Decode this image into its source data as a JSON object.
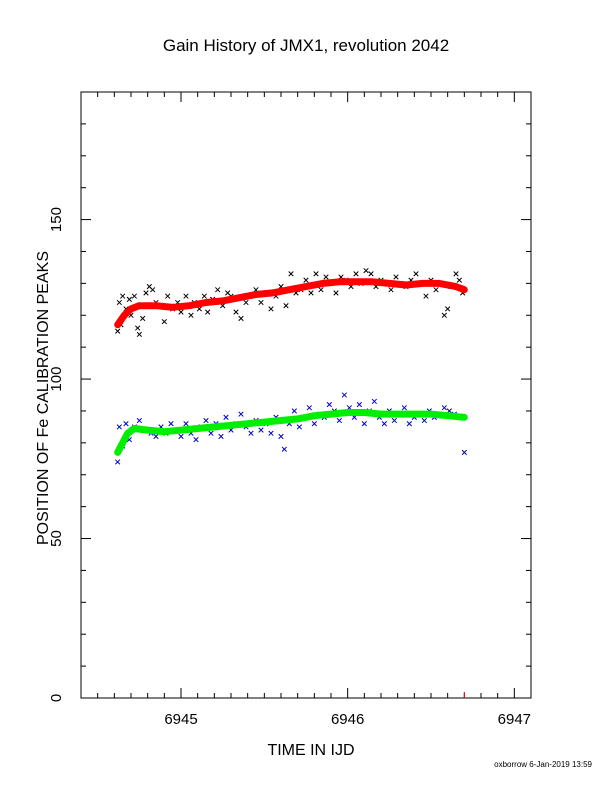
{
  "chart_data": {
    "type": "scatter",
    "title": "Gain History of JMX1, revolution 2042",
    "xlabel": "TIME IN IJD",
    "ylabel": "POSITION OF Fe CALIBRATION PEAKS",
    "xlim": [
      6944.4,
      6947.1
    ],
    "ylim": [
      0,
      190
    ],
    "x_ticks": [
      "6945",
      "6946",
      "6947"
    ],
    "y_ticks": [
      "0",
      "50",
      "100",
      "150"
    ],
    "grid": false,
    "series": [
      {
        "marker": "x",
        "color": "#000000",
        "points": [
          [
            6944.62,
            115
          ],
          [
            6944.63,
            124
          ],
          [
            6944.64,
            117
          ],
          [
            6944.65,
            126
          ],
          [
            6944.67,
            122
          ],
          [
            6944.69,
            125
          ],
          [
            6944.7,
            120
          ],
          [
            6944.72,
            126
          ],
          [
            6944.74,
            116
          ],
          [
            6944.75,
            114
          ],
          [
            6944.77,
            119
          ],
          [
            6944.79,
            127
          ],
          [
            6944.81,
            129
          ],
          [
            6944.83,
            128
          ],
          [
            6944.85,
            124
          ],
          [
            6944.88,
            123
          ],
          [
            6944.9,
            118
          ],
          [
            6944.92,
            126
          ],
          [
            6944.95,
            122
          ],
          [
            6944.98,
            124
          ],
          [
            6945.0,
            121
          ],
          [
            6945.03,
            126
          ],
          [
            6945.06,
            120
          ],
          [
            6945.08,
            124
          ],
          [
            6945.11,
            122
          ],
          [
            6945.14,
            126
          ],
          [
            6945.16,
            121
          ],
          [
            6945.19,
            125
          ],
          [
            6945.22,
            128
          ],
          [
            6945.25,
            123
          ],
          [
            6945.28,
            127
          ],
          [
            6945.3,
            126
          ],
          [
            6945.33,
            121
          ],
          [
            6945.36,
            119
          ],
          [
            6945.39,
            124
          ],
          [
            6945.42,
            126
          ],
          [
            6945.45,
            128
          ],
          [
            6945.48,
            124
          ],
          [
            6945.51,
            127
          ],
          [
            6945.54,
            122
          ],
          [
            6945.57,
            126
          ],
          [
            6945.6,
            129
          ],
          [
            6945.63,
            123
          ],
          [
            6945.66,
            133
          ],
          [
            6945.69,
            127
          ],
          [
            6945.72,
            128
          ],
          [
            6945.75,
            131
          ],
          [
            6945.78,
            127
          ],
          [
            6945.81,
            133
          ],
          [
            6945.84,
            128
          ],
          [
            6945.87,
            132
          ],
          [
            6945.9,
            130
          ],
          [
            6945.93,
            127
          ],
          [
            6945.96,
            132
          ],
          [
            6945.99,
            131
          ],
          [
            6946.02,
            129
          ],
          [
            6946.05,
            133
          ],
          [
            6946.08,
            130
          ],
          [
            6946.11,
            134
          ],
          [
            6946.14,
            133
          ],
          [
            6946.17,
            129
          ],
          [
            6946.2,
            131
          ],
          [
            6946.23,
            130
          ],
          [
            6946.26,
            128
          ],
          [
            6946.29,
            132
          ],
          [
            6946.32,
            130
          ],
          [
            6946.35,
            129
          ],
          [
            6946.38,
            131
          ],
          [
            6946.41,
            133
          ],
          [
            6946.44,
            130
          ],
          [
            6946.47,
            126
          ],
          [
            6946.5,
            131
          ],
          [
            6946.53,
            128
          ],
          [
            6946.56,
            130
          ],
          [
            6946.58,
            120
          ],
          [
            6946.6,
            122
          ],
          [
            6946.62,
            129
          ],
          [
            6946.65,
            133
          ],
          [
            6946.67,
            131
          ],
          [
            6946.69,
            127
          ]
        ]
      },
      {
        "marker": "x",
        "color": "#0000cc",
        "points": [
          [
            6944.62,
            74
          ],
          [
            6944.63,
            85
          ],
          [
            6944.65,
            79
          ],
          [
            6944.67,
            86
          ],
          [
            6944.69,
            81
          ],
          [
            6944.72,
            85
          ],
          [
            6944.75,
            87
          ],
          [
            6944.78,
            84
          ],
          [
            6944.82,
            83
          ],
          [
            6944.85,
            82
          ],
          [
            6944.88,
            85
          ],
          [
            6944.91,
            83
          ],
          [
            6944.94,
            86
          ],
          [
            6944.97,
            84
          ],
          [
            6945.0,
            82
          ],
          [
            6945.03,
            86
          ],
          [
            6945.06,
            83
          ],
          [
            6945.09,
            81
          ],
          [
            6945.12,
            85
          ],
          [
            6945.15,
            87
          ],
          [
            6945.18,
            83
          ],
          [
            6945.21,
            86
          ],
          [
            6945.24,
            82
          ],
          [
            6945.27,
            88
          ],
          [
            6945.3,
            84
          ],
          [
            6945.33,
            86
          ],
          [
            6945.36,
            89
          ],
          [
            6945.39,
            85
          ],
          [
            6945.42,
            83
          ],
          [
            6945.45,
            87
          ],
          [
            6945.48,
            84
          ],
          [
            6945.51,
            86
          ],
          [
            6945.54,
            83
          ],
          [
            6945.57,
            88
          ],
          [
            6945.6,
            82
          ],
          [
            6945.62,
            78
          ],
          [
            6945.65,
            86
          ],
          [
            6945.68,
            90
          ],
          [
            6945.71,
            85
          ],
          [
            6945.74,
            88
          ],
          [
            6945.77,
            91
          ],
          [
            6945.8,
            86
          ],
          [
            6945.83,
            89
          ],
          [
            6945.86,
            88
          ],
          [
            6945.89,
            92
          ],
          [
            6945.92,
            90
          ],
          [
            6945.95,
            87
          ],
          [
            6945.98,
            95
          ],
          [
            6946.01,
            91
          ],
          [
            6946.04,
            88
          ],
          [
            6946.07,
            92
          ],
          [
            6946.1,
            86
          ],
          [
            6946.13,
            90
          ],
          [
            6946.16,
            93
          ],
          [
            6946.19,
            88
          ],
          [
            6946.22,
            86
          ],
          [
            6946.25,
            90
          ],
          [
            6946.28,
            87
          ],
          [
            6946.31,
            89
          ],
          [
            6946.34,
            91
          ],
          [
            6946.37,
            86
          ],
          [
            6946.4,
            88
          ],
          [
            6946.43,
            89
          ],
          [
            6946.46,
            87
          ],
          [
            6946.49,
            90
          ],
          [
            6946.52,
            88
          ],
          [
            6946.55,
            89
          ],
          [
            6946.58,
            91
          ],
          [
            6946.61,
            90
          ],
          [
            6946.64,
            89
          ],
          [
            6946.67,
            88
          ],
          [
            6946.7,
            77
          ]
        ]
      },
      {
        "color": "#ff0000",
        "points": [
          [
            6944.62,
            117
          ],
          [
            6944.66,
            120
          ],
          [
            6944.7,
            122
          ],
          [
            6944.75,
            123
          ],
          [
            6944.85,
            123
          ],
          [
            6944.95,
            122.5
          ],
          [
            6945.05,
            123
          ],
          [
            6945.15,
            124
          ],
          [
            6945.25,
            124.5
          ],
          [
            6945.35,
            125.5
          ],
          [
            6945.45,
            126.5
          ],
          [
            6945.55,
            127
          ],
          [
            6945.65,
            128
          ],
          [
            6945.75,
            129
          ],
          [
            6945.85,
            130
          ],
          [
            6945.95,
            130.5
          ],
          [
            6946.05,
            130.5
          ],
          [
            6946.15,
            130.5
          ],
          [
            6946.25,
            130
          ],
          [
            6946.35,
            129.5
          ],
          [
            6946.45,
            130
          ],
          [
            6946.55,
            130
          ],
          [
            6946.65,
            129
          ],
          [
            6946.7,
            128
          ]
        ]
      },
      {
        "color": "#00ee00",
        "points": [
          [
            6944.62,
            77
          ],
          [
            6944.65,
            80
          ],
          [
            6944.68,
            83
          ],
          [
            6944.72,
            84.5
          ],
          [
            6944.8,
            84
          ],
          [
            6944.9,
            83.5
          ],
          [
            6945.0,
            84
          ],
          [
            6945.1,
            84.5
          ],
          [
            6945.2,
            85
          ],
          [
            6945.3,
            85.5
          ],
          [
            6945.4,
            86
          ],
          [
            6945.5,
            86.5
          ],
          [
            6945.6,
            87
          ],
          [
            6945.7,
            87.5
          ],
          [
            6945.8,
            88.5
          ],
          [
            6945.9,
            89
          ],
          [
            6946.0,
            89.5
          ],
          [
            6946.1,
            89.5
          ],
          [
            6946.2,
            89
          ],
          [
            6946.3,
            89
          ],
          [
            6946.4,
            89
          ],
          [
            6946.5,
            89
          ],
          [
            6946.6,
            88.5
          ],
          [
            6946.7,
            88
          ]
        ]
      }
    ],
    "markers": [
      {
        "color": "#ff0000",
        "x": 6946.7
      }
    ]
  },
  "footer": "oxborrow 6-Jan-2019 13:59"
}
